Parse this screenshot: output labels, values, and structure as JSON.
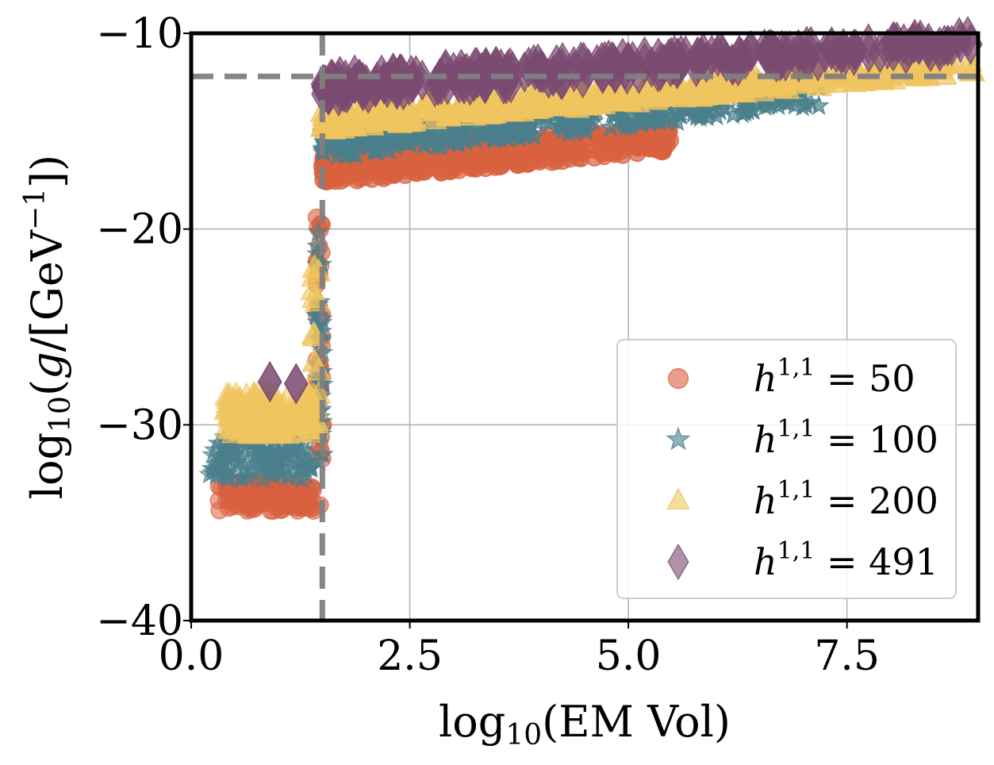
{
  "chart_data": {
    "type": "scatter",
    "title": "",
    "xlabel": "log10(EM Vol)",
    "ylabel": "log10(g/[GeV^-1])",
    "xlim": [
      0,
      9
    ],
    "ylim": [
      -40,
      -10
    ],
    "x_ticks": [
      0.0,
      2.5,
      5.0,
      7.5
    ],
    "y_ticks": [
      -40,
      -30,
      -20,
      -10
    ],
    "x_tick_labels": [
      "0.0",
      "2.5",
      "5.0",
      "7.5"
    ],
    "y_tick_labels": [
      "−40",
      "−30",
      "−20",
      "−10"
    ],
    "grid": true,
    "legend_position": "lower-right",
    "reference_lines": [
      {
        "orientation": "vertical",
        "value": 1.5,
        "style": "dashed",
        "color": "#808080"
      },
      {
        "orientation": "horizontal",
        "value": -12.2,
        "style": "dashed",
        "color": "#808080"
      }
    ],
    "series": [
      {
        "name": "h^{1,1} = 50",
        "legend_label": "h1,1 = 50",
        "marker": "circle",
        "color": "#d9613f",
        "low_x": [
          0.3,
          1.4
        ],
        "low_y": [
          -34.4,
          -32.8
        ],
        "jump_x": 1.47,
        "jump_y": [
          -34.5,
          -19.0
        ],
        "high_start": {
          "x": 1.5,
          "y_lo": -17.7,
          "y_hi": -15.8
        },
        "high_end": {
          "x": 5.5,
          "y_lo": -16.0,
          "y_hi": -14.8
        }
      },
      {
        "name": "h^{1,1} = 100",
        "legend_label": "h1,1 = 100",
        "marker": "star",
        "color": "#4a7f8c",
        "low_x": [
          0.2,
          1.4
        ],
        "low_y": [
          -32.8,
          -30.6
        ],
        "jump_x": 1.47,
        "jump_y": [
          -32.0,
          -20.0
        ],
        "high_start": {
          "x": 1.5,
          "y_lo": -16.4,
          "y_hi": -15.0
        },
        "high_end": {
          "x": 7.2,
          "y_lo": -13.8,
          "y_hi": -12.6
        }
      },
      {
        "name": "h^{1,1} = 200",
        "legend_label": "h1,1 = 200",
        "marker": "triangle",
        "color": "#f0c45e",
        "low_x": [
          0.4,
          1.45
        ],
        "low_y": [
          -30.5,
          -28.4
        ],
        "jump_x": 1.43,
        "jump_y": [
          -30.0,
          -22.0
        ],
        "high_start": {
          "x": 1.5,
          "y_lo": -15.0,
          "y_hi": -14.0
        },
        "high_end": {
          "x": 9.0,
          "y_lo": -12.0,
          "y_hi": -11.2
        }
      },
      {
        "name": "h^{1,1} = 491",
        "legend_label": "h1,1 = 491",
        "marker": "diamond",
        "color": "#7a4a70",
        "low_points": [
          [
            0.9,
            -27.8
          ],
          [
            1.2,
            -27.9
          ]
        ],
        "high_start": {
          "x": 1.5,
          "y_lo": -13.3,
          "y_hi": -12.2
        },
        "high_end": {
          "x": 9.0,
          "y_lo": -10.8,
          "y_hi": -10.1
        }
      }
    ]
  }
}
